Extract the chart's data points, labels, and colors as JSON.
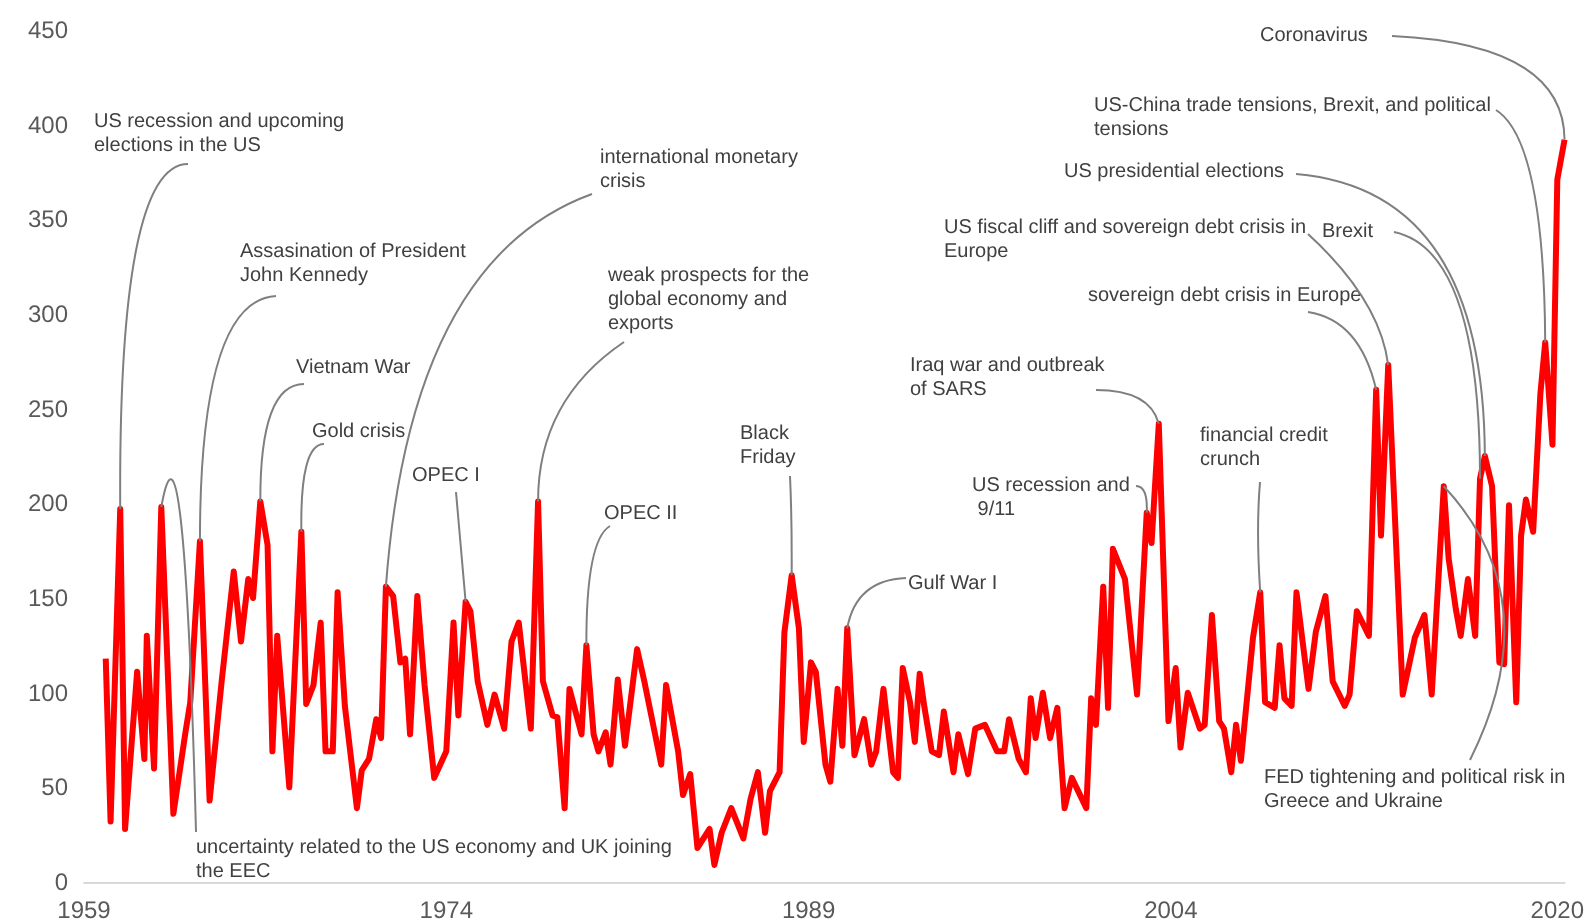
{
  "chart_data": {
    "type": "line",
    "x": [
      1959.9,
      1960.1,
      1960.5,
      1960.7,
      1961.2,
      1961.5,
      1961.6,
      1961.9,
      1962.2,
      1962.7,
      1963.2,
      1963.4,
      1963.8,
      1964.2,
      1964.7,
      1965.2,
      1965.5,
      1965.8,
      1966.0,
      1966.3,
      1966.6,
      1966.8,
      1967.0,
      1967.5,
      1968.0,
      1968.2,
      1968.5,
      1968.8,
      1969.0,
      1969.3,
      1969.5,
      1969.8,
      1970.3,
      1970.5,
      1970.8,
      1971.1,
      1971.3,
      1971.5,
      1971.8,
      1972.1,
      1972.3,
      1972.5,
      1972.8,
      1973.1,
      1973.5,
      1974.0,
      1974.3,
      1974.5,
      1974.8,
      1975.0,
      1975.3,
      1975.7,
      1976.0,
      1976.4,
      1976.7,
      1977.0,
      1977.5,
      1977.8,
      1978.0,
      1978.4,
      1978.6,
      1978.9,
      1979.1,
      1979.6,
      1979.8,
      1980.1,
      1980.3,
      1980.6,
      1980.8,
      1981.1,
      1981.4,
      1981.9,
      1982.2,
      1982.9,
      1983.1,
      1983.6,
      1983.8,
      1984.1,
      1984.4,
      1984.9,
      1985.1,
      1985.4,
      1985.8,
      1986.3,
      1986.6,
      1986.9,
      1987.2,
      1987.4,
      1987.8,
      1988.0,
      1988.3,
      1988.6,
      1988.8,
      1989.1,
      1989.3,
      1989.7,
      1989.9,
      1990.2,
      1990.4,
      1990.6,
      1990.9,
      1991.3,
      1991.6,
      1991.8,
      1992.1,
      1992.5,
      1992.7,
      1992.9,
      1993.2,
      1993.4,
      1993.6,
      1993.8,
      1994.1,
      1994.4,
      1994.6,
      1995.0,
      1995.2,
      1995.6,
      1995.9,
      1996.3,
      1996.8,
      1997.1,
      1997.3,
      1997.7,
      1998.0,
      1998.2,
      1998.4,
      1998.7,
      1999.0,
      1999.3,
      1999.6,
      1999.9,
      2000.5,
      2000.7,
      2000.9,
      2001.2,
      2001.4,
      2001.6,
      2002.1,
      2002.6,
      2003.0,
      2003.2,
      2003.5,
      2003.9,
      2004.2,
      2004.4,
      2004.7,
      2005.2,
      2005.4,
      2005.7,
      2006.0,
      2006.2,
      2006.5,
      2006.7,
      2006.9,
      2007.4,
      2007.7,
      2007.9,
      2008.3,
      2008.5,
      2008.7,
      2009.0,
      2009.2,
      2009.7,
      2010.0,
      2010.4,
      2010.7,
      2011.2,
      2011.4,
      2011.7,
      2012.2,
      2012.5,
      2012.7,
      2013.0,
      2013.6,
      2014.1,
      2014.5,
      2014.8,
      2015.3,
      2015.5,
      2015.8,
      2016.0,
      2016.3,
      2016.6,
      2016.8,
      2017.0,
      2017.3,
      2017.6,
      2017.8,
      2018.0,
      2018.3,
      2018.5,
      2018.7,
      2019.0,
      2019.3,
      2019.5,
      2019.8,
      2020.0,
      2020.3
    ],
    "series": [
      {
        "color": "#ff0000",
        "values": [
          118,
          32,
          197,
          28,
          111,
          65,
          130,
          60,
          198,
          36,
          79,
          95,
          180,
          43,
          106,
          164,
          127,
          160,
          150,
          201,
          178,
          69,
          130,
          50,
          185,
          94,
          104,
          137,
          69,
          69,
          153,
          93,
          39,
          59,
          65,
          86,
          76,
          156,
          151,
          116,
          118,
          78,
          151,
          104,
          55,
          69,
          137,
          88,
          148,
          143,
          106,
          83,
          99,
          81,
          127,
          137,
          81,
          201,
          106,
          88,
          87,
          39,
          102,
          78,
          125,
          78,
          69,
          79,
          62,
          107,
          72,
          123,
          106,
          62,
          104,
          69,
          46,
          57,
          18,
          28,
          9,
          26,
          39,
          23,
          44,
          58,
          26,
          48,
          58,
          132,
          162,
          134,
          74,
          116,
          111,
          62,
          53,
          102,
          72,
          134,
          67,
          86,
          62,
          69,
          102,
          58,
          55,
          113,
          95,
          74,
          110,
          92,
          69,
          67,
          90,
          58,
          78,
          57,
          81,
          83,
          69,
          69,
          86,
          65,
          58,
          97,
          76,
          100,
          76,
          92,
          39,
          55,
          39,
          97,
          83,
          156,
          92,
          176,
          160,
          99,
          195,
          179,
          242,
          85,
          113,
          71,
          100,
          81,
          83,
          141,
          85,
          81,
          58,
          83,
          64,
          129,
          153,
          95,
          92,
          125,
          97,
          93,
          153,
          102,
          132,
          151,
          106,
          93,
          99,
          143,
          130,
          260,
          183,
          273,
          99,
          129,
          141,
          99,
          209,
          171,
          144,
          130,
          160,
          130,
          213,
          225,
          209,
          116,
          115,
          199,
          95,
          183,
          202,
          185,
          258,
          285,
          231,
          371,
          392
        ]
      }
    ],
    "xlim": [
      1959,
      2020.3
    ],
    "xticks": [
      1959,
      1974,
      1989,
      2004,
      2020
    ],
    "ylim": [
      0,
      450
    ],
    "yticks": [
      0,
      50,
      100,
      150,
      200,
      250,
      300,
      350,
      400,
      450
    ],
    "annotations": [
      {
        "text": "US recession and upcoming elections in the US",
        "x": 1960.5,
        "y": 197
      },
      {
        "text": "uncertainty related to the US economy and UK joining the EEC",
        "x": 1962.2,
        "y": 198
      },
      {
        "text": "Assasination of President John Kennedy",
        "x": 1963.8,
        "y": 180
      },
      {
        "text": "Vietnam War",
        "x": 1966.3,
        "y": 201
      },
      {
        "text": "Gold crisis",
        "x": 1968.0,
        "y": 185
      },
      {
        "text": "international monetary crisis",
        "x": 1971.5,
        "y": 156
      },
      {
        "text": "OPEC I",
        "x": 1974.8,
        "y": 148
      },
      {
        "text": "weak prospects for the global economy and exports",
        "x": 1977.8,
        "y": 201
      },
      {
        "text": "OPEC II",
        "x": 1979.8,
        "y": 125
      },
      {
        "text": "Black Friday",
        "x": 1988.3,
        "y": 162
      },
      {
        "text": "Gulf War I",
        "x": 1990.6,
        "y": 134
      },
      {
        "text": "US recession and 9/11",
        "x": 2003.0,
        "y": 195
      },
      {
        "text": "Iraq war and outbreak of SARS",
        "x": 2003.5,
        "y": 242
      },
      {
        "text": "financial credit crunch",
        "x": 2007.7,
        "y": 153
      },
      {
        "text": "US fiscal cliff and sovereign debt crisis in Europe",
        "x": 2013.0,
        "y": 273
      },
      {
        "text": "sovereign debt crisis in Europe",
        "x": 2012.5,
        "y": 260
      },
      {
        "text": "US presidential elections",
        "x": 2017.0,
        "y": 225
      },
      {
        "text": "Brexit",
        "x": 2016.8,
        "y": 213
      },
      {
        "text": "US-China trade tensions, Brexit, and political tensions",
        "x": 2019.5,
        "y": 285
      },
      {
        "text": "Coronavirus",
        "x": 2020.3,
        "y": 392
      },
      {
        "text": "FED tightening and political risk in Greece and Ukraine",
        "x": 2015.3,
        "y": 209
      }
    ]
  }
}
